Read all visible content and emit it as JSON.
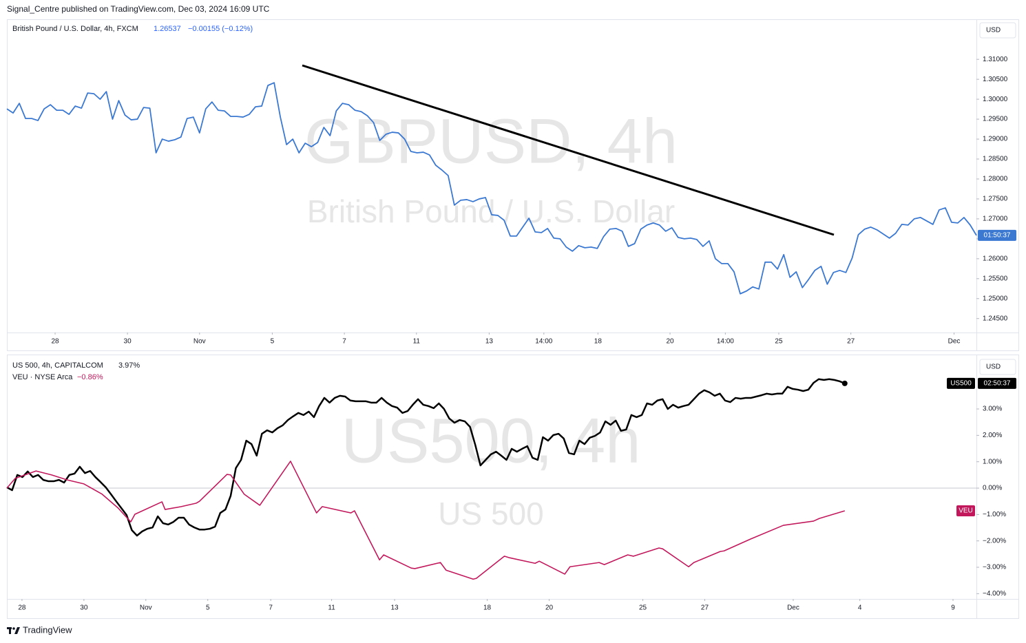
{
  "header": "Signal_Centre published on TradingView.com, Dec 03, 2024 16:09 UTC",
  "footer": "TradingView",
  "chart_data": [
    {
      "type": "line",
      "title": "British Pound / U.S. Dollar, 4h, FXCM",
      "last_price": "1.26537",
      "change": "−0.00155 (−0.12%)",
      "watermark": "GBPUSD, 4h",
      "watermark_subtitle": "British Pound / U.S. Dollar",
      "currency": "USD",
      "countdown": "01:50:37",
      "series": [
        {
          "color": "#3a78d2",
          "values": [
            1.29759,
            1.29655,
            1.29897,
            1.29517,
            1.29517,
            1.29466,
            1.29759,
            1.29862,
            1.29724,
            1.29724,
            1.29621,
            1.29828,
            1.29776,
            1.30155,
            1.30138,
            1.3,
            1.3019,
            1.295,
            1.29966,
            1.29603,
            1.29483,
            1.295,
            1.29793,
            1.29776,
            1.28655,
            1.29,
            1.28948,
            1.28983,
            1.29052,
            1.29517,
            1.29552,
            1.29155,
            1.29759,
            1.29931,
            1.29724,
            1.29707,
            1.29569,
            1.29569,
            1.29552,
            1.29621,
            1.2981,
            1.29828,
            1.30345,
            1.30414,
            1.29552,
            1.28862,
            1.29,
            1.28655,
            1.28897,
            1.2881,
            1.28914,
            1.29293,
            1.29086,
            1.29707,
            1.29897,
            1.29862,
            1.29724,
            1.2969,
            1.29586,
            1.29414,
            1.28966,
            1.29121,
            1.29172,
            1.29155,
            1.29,
            1.2869,
            1.28655,
            1.28672,
            1.28603,
            1.28345,
            1.28224,
            1.28086,
            1.27345,
            1.27466,
            1.27483,
            1.27431,
            1.275,
            1.27534,
            1.27103,
            1.27086,
            1.26966,
            1.26569,
            1.26569,
            1.26793,
            1.27017,
            1.26672,
            1.26655,
            1.26759,
            1.26517,
            1.265,
            1.26293,
            1.2619,
            1.26328,
            1.26276,
            1.26293,
            1.26259,
            1.26552,
            1.26741,
            1.26759,
            1.2669,
            1.2631,
            1.26379,
            1.26741,
            1.26845,
            1.26897,
            1.26845,
            1.2669,
            1.26776,
            1.26534,
            1.265,
            1.26517,
            1.26483,
            1.2631,
            1.26448,
            1.26,
            1.25879,
            1.25879,
            1.25672,
            1.25121,
            1.2519,
            1.25293,
            1.25241,
            1.25914,
            1.25914,
            1.25741,
            1.26103,
            1.25534,
            1.25672,
            1.25276,
            1.25483,
            1.25707,
            1.2581,
            1.25362,
            1.25655,
            1.25707,
            1.25655,
            1.26017,
            1.26603,
            1.26741,
            1.26793,
            1.26724,
            1.26621,
            1.26517,
            1.26638,
            1.26862,
            1.26845,
            1.27,
            1.27034,
            1.26948,
            1.26862,
            1.27224,
            1.27276,
            1.26914,
            1.26897,
            1.27034,
            1.26845,
            1.26586
          ]
        }
      ],
      "xlim": [
        0,
        156
      ],
      "xticks": [
        {
          "value": 7.76,
          "label": "28"
        },
        {
          "value": 19.4,
          "label": "30"
        },
        {
          "value": 31.0,
          "label": "Nov"
        },
        {
          "value": 42.7,
          "label": "5"
        },
        {
          "value": 54.3,
          "label": "7"
        },
        {
          "value": 65.9,
          "label": "11"
        },
        {
          "value": 77.6,
          "label": "13"
        },
        {
          "value": 86.4,
          "label": "14:00"
        },
        {
          "value": 95.1,
          "label": "18"
        },
        {
          "value": 106.7,
          "label": "20"
        },
        {
          "value": 115.6,
          "label": "14:00"
        },
        {
          "value": 124.2,
          "label": "25"
        },
        {
          "value": 135.8,
          "label": "27"
        },
        {
          "value": 152.4,
          "label": "Dec"
        }
      ],
      "ylim": [
        1.2415,
        1.3197
      ],
      "yticks": [
        {
          "value": 1.31,
          "label": "1.31000"
        },
        {
          "value": 1.305,
          "label": "1.30500"
        },
        {
          "value": 1.3,
          "label": "1.30000"
        },
        {
          "value": 1.295,
          "label": "1.29500"
        },
        {
          "value": 1.29,
          "label": "1.29000"
        },
        {
          "value": 1.285,
          "label": "1.28500"
        },
        {
          "value": 1.28,
          "label": "1.28000"
        },
        {
          "value": 1.275,
          "label": "1.27500"
        },
        {
          "value": 1.27,
          "label": "1.27000"
        },
        {
          "value": 1.265,
          "label": "1.26500"
        },
        {
          "value": 1.26,
          "label": "1.26000"
        },
        {
          "value": 1.255,
          "label": "1.25500"
        },
        {
          "value": 1.25,
          "label": "1.25000"
        },
        {
          "value": 1.245,
          "label": "1.24500"
        }
      ]
    },
    {
      "type": "line",
      "watermark": "US500, 4h",
      "watermark_subtitle": "US 500",
      "currency": "USD",
      "countdown": "02:50:37",
      "zero_line": true,
      "series": [
        {
          "name": "US 500, 4h, CAPITALCOM",
          "change": "3.97%",
          "tag": "US500",
          "color": "#000000",
          "end_dot": true,
          "values": [
            0.03,
            -0.08,
            0.5,
            0.42,
            0.63,
            0.42,
            0.5,
            0.31,
            0.26,
            0.26,
            0.31,
            0.21,
            0.5,
            0.55,
            0.81,
            0.57,
            0.65,
            0.42,
            0.23,
            0.03,
            -0.23,
            -0.5,
            -0.76,
            -1.02,
            -1.59,
            -1.8,
            -1.64,
            -1.54,
            -1.49,
            -1.07,
            -1.33,
            -1.38,
            -1.28,
            -1.12,
            -1.12,
            -1.38,
            -1.49,
            -1.57,
            -1.57,
            -1.54,
            -1.46,
            -0.94,
            -0.81,
            -0.29,
            0.76,
            1.07,
            1.8,
            1.67,
            1.23,
            2.06,
            2.19,
            2.11,
            2.27,
            2.38,
            2.58,
            2.72,
            2.85,
            2.77,
            2.9,
            2.69,
            3.11,
            3.42,
            3.24,
            3.42,
            3.5,
            3.47,
            3.32,
            3.29,
            3.29,
            3.29,
            3.24,
            3.24,
            3.42,
            3.24,
            3.11,
            3.05,
            2.85,
            2.92,
            3.16,
            3.37,
            3.16,
            3.11,
            3.03,
            3.21,
            3.0,
            2.64,
            2.48,
            2.58,
            2.53,
            2.32,
            1.64,
            0.86,
            1.07,
            1.28,
            1.38,
            1.23,
            1.07,
            1.49,
            1.38,
            1.49,
            1.59,
            1.15,
            1.07,
            1.93,
            1.8,
            2.01,
            2.06,
            1.88,
            1.33,
            1.28,
            1.8,
            1.67,
            1.91,
            1.98,
            2.11,
            2.53,
            2.4,
            2.56,
            2.17,
            2.22,
            2.77,
            2.69,
            2.77,
            3.21,
            3.16,
            3.32,
            3.37,
            3.0,
            3.16,
            3.05,
            3.11,
            3.16,
            3.37,
            3.58,
            3.71,
            3.63,
            3.5,
            3.58,
            3.32,
            3.26,
            3.42,
            3.39,
            3.42,
            3.42,
            3.47,
            3.52,
            3.58,
            3.55,
            3.58,
            3.58,
            3.84,
            3.76,
            3.73,
            3.68,
            3.73,
            3.99,
            4.13,
            4.1,
            4.13,
            4.1,
            4.05,
            3.97
          ]
        },
        {
          "name": "VEU · NYSE Arca",
          "change": "−0.86%",
          "tag": "VEU",
          "color": "#c2185b",
          "x": [
            0,
            1.6,
            5.6,
            8.6,
            11.6,
            14.8,
            18.3,
            21.4,
            23.8,
            24.6,
            29.8,
            30.4,
            33.5,
            36.4,
            37.0,
            42.3,
            43.0,
            45.6,
            48.6,
            54.5,
            59.5,
            60.6,
            66.1,
            66.8,
            71.6,
            72.4,
            77.7,
            78.4,
            83.3,
            84.4,
            89.6,
            90.2,
            95.6,
            96.6,
            101.5,
            102.3,
            107.2,
            108.2,
            113.8,
            114.8,
            119.3,
            120.4,
            125.3,
            126.0,
            131.0,
            132.0,
            137.1,
            137.8,
            142.9,
            149.2,
            155.0,
            156.1,
            161.0
          ],
          "values": [
            0.0,
            0.37,
            0.65,
            0.5,
            0.31,
            0.16,
            -0.23,
            -0.76,
            -1.28,
            -0.99,
            -0.52,
            -0.81,
            -0.7,
            -0.57,
            -0.5,
            0.52,
            0.5,
            -0.23,
            -0.65,
            1.02,
            -0.94,
            -0.7,
            -0.94,
            -0.86,
            -2.72,
            -2.53,
            -3.03,
            -3.05,
            -2.82,
            -3.11,
            -3.45,
            -3.42,
            -2.58,
            -2.64,
            -2.85,
            -2.77,
            -3.26,
            -2.98,
            -2.82,
            -2.9,
            -2.53,
            -2.58,
            -2.27,
            -2.3,
            -2.98,
            -2.82,
            -2.4,
            -2.38,
            -1.93,
            -1.41,
            -1.25,
            -1.15,
            -0.86
          ]
        }
      ],
      "xlim": [
        0,
        186.3
      ],
      "xticks": [
        {
          "value": 2.9,
          "label": "28"
        },
        {
          "value": 14.8,
          "label": "30"
        },
        {
          "value": 26.7,
          "label": "Nov"
        },
        {
          "value": 38.6,
          "label": "5"
        },
        {
          "value": 50.7,
          "label": "7"
        },
        {
          "value": 62.4,
          "label": "11"
        },
        {
          "value": 74.5,
          "label": "13"
        },
        {
          "value": 92.3,
          "label": "18"
        },
        {
          "value": 104.2,
          "label": "20"
        },
        {
          "value": 122.2,
          "label": "25"
        },
        {
          "value": 134.1,
          "label": "27"
        },
        {
          "value": 151.1,
          "label": "Dec"
        },
        {
          "value": 163.9,
          "label": "4"
        },
        {
          "value": 181.8,
          "label": "9"
        }
      ],
      "ylim": [
        -4.2,
        5.01
      ],
      "yticks": [
        {
          "value": 3,
          "label": "3.00%"
        },
        {
          "value": 2,
          "label": "2.00%"
        },
        {
          "value": 1,
          "label": "1.00%"
        },
        {
          "value": 0,
          "label": "0.00%"
        },
        {
          "value": -1,
          "label": "−1.00%"
        },
        {
          "value": -2,
          "label": "−2.00%"
        },
        {
          "value": -3,
          "label": "−3.00%"
        },
        {
          "value": -4,
          "label": "−4.00%"
        }
      ]
    }
  ]
}
